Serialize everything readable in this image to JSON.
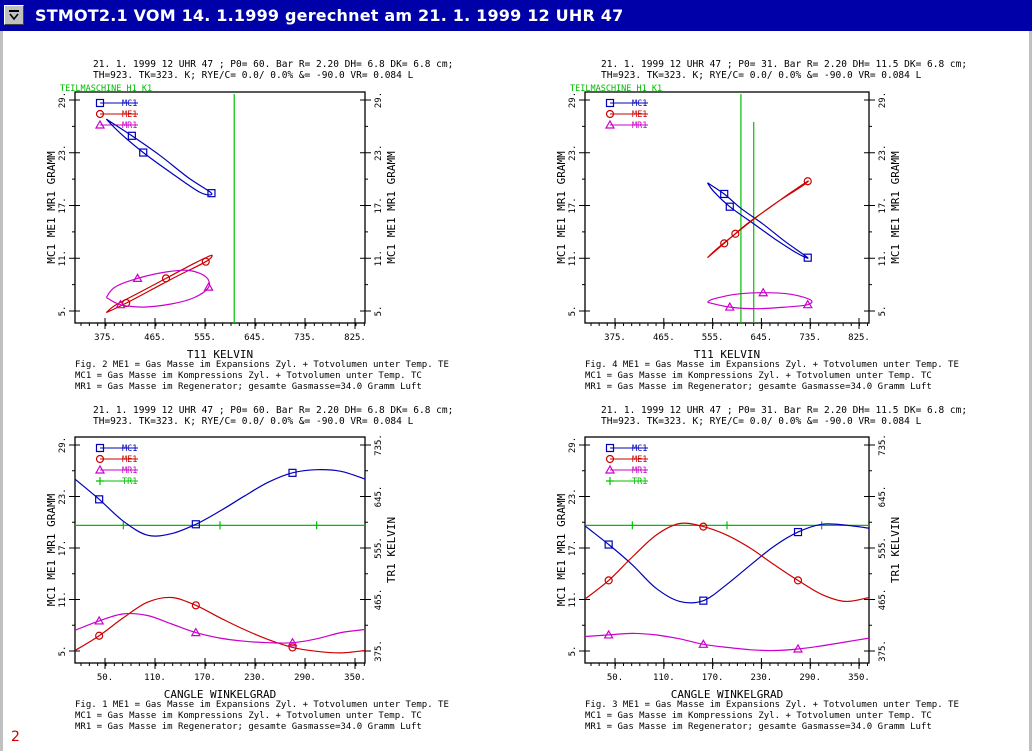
{
  "window": {
    "title": "STMOT2.1 VOM 14. 1.1999 gerechnet am 21. 1. 1999 12 UHR 47",
    "page_number": "2",
    "sysmenu_icon": "system-menu-icon"
  },
  "colors": {
    "MC1": "#0000bb",
    "ME1": "#cc0000",
    "MR1": "#cc00cc",
    "TR1": "#00c000",
    "label": "#00bb00",
    "title_bar": "#0000a8"
  },
  "charts": [
    {
      "id": "fig2",
      "header_lines": [
        "21. 1. 1999 12 UHR 47 ; P0= 60. Bar R= 2.20 DH=  6.8 DK=  6.8 cm;",
        "TH=923. TK=323. K; RYE/C= 0.0/ 0.0% &= -90.0 VR= 0.084 L"
      ],
      "machine_label": "TEILMASCHINE H1  K1",
      "legend": [
        "MC1",
        "ME1",
        "MR1"
      ],
      "ylabel_left": "MC1  ME1  MR1  GRAMM",
      "ylabel_right": "MC1  ME1  MR1  GRAMM",
      "yticks_left": [
        "29.",
        "23.",
        "17.",
        "11.",
        "5."
      ],
      "yticks_right": [
        "29.",
        "23.",
        "17.",
        "11.",
        "5."
      ],
      "xticks": [
        "375.",
        "465.",
        "555.",
        "645.",
        "735.",
        "825."
      ],
      "xlabel": "T11     KELVIN",
      "caption_lines": [
        "Fig. 2 ME1 = Gas Masse im Expansions Zyl. + Totvolumen unter Temp. TE",
        "       MC1 = Gas Masse im Kompressions Zyl. + Totvolumen unter Temp. TC",
        "       MR1 = Gas Masse im Regenerator; gesamte Gasmasse=34.0 Gramm Luft"
      ]
    },
    {
      "id": "fig4",
      "header_lines": [
        "21. 1. 1999 12 UHR 47 ; P0= 31. Bar R= 2.20 DH= 11.5 DK=  6.8 cm;",
        "TH=923. TK=323. K; RYE/C= 0.0/ 0.0% &= -90.0 VR= 0.084 L"
      ],
      "machine_label": "TEILMASCHINE H1  K1",
      "legend": [
        "MC1",
        "ME1",
        "MR1"
      ],
      "ylabel_left": "MC1  ME1  MR1  GRAMM",
      "ylabel_right": "MC1  ME1  MR1  GRAMM",
      "yticks_left": [
        "29.",
        "23.",
        "17.",
        "11.",
        "5."
      ],
      "yticks_right": [
        "29.",
        "23.",
        "17.",
        "11.",
        "5."
      ],
      "xticks": [
        "375.",
        "465.",
        "555.",
        "645.",
        "735.",
        "825."
      ],
      "xlabel": "T11     KELVIN",
      "caption_lines": [
        "Fig. 4 ME1 = Gas Masse im Expansions Zyl. + Totvolumen unter Temp. TE",
        "       MC1 = Gas Masse im Kompressions Zyl. + Totvolumen unter Temp. TC",
        "       MR1 = Gas Masse im Regenerator; gesamte Gasmasse=34.0 Gramm Luft"
      ]
    },
    {
      "id": "fig1",
      "header_lines": [
        "21. 1. 1999 12 UHR 47 ; P0= 60. Bar R= 2.20 DH=  6.8 DK=  6.8 cm;",
        "TH=923. TK=323. K; RYE/C= 0.0/ 0.0% &= -90.0 VR= 0.084 L"
      ],
      "machine_label": "",
      "legend": [
        "MC1",
        "ME1",
        "MR1",
        "TR1"
      ],
      "ylabel_left": "MC1  ME1  MR1  GRAMM",
      "ylabel_right": "TR1  KELVIN",
      "yticks_left": [
        "29.",
        "23.",
        "17.",
        "11.",
        "5."
      ],
      "yticks_right": [
        "735.",
        "645.",
        "555.",
        "465.",
        "375."
      ],
      "xticks": [
        "50.",
        "110.",
        "170.",
        "230.",
        "290.",
        "350."
      ],
      "xlabel": "CANGLE WINKELGRAD",
      "caption_lines": [
        "Fig. 1 ME1 = Gas Masse im Expansions Zyl. + Totvolumen unter Temp. TE",
        "       MC1 = Gas Masse im Kompressions Zyl. + Totvolumen unter Temp. TC",
        "       MR1 = Gas Masse im Regenerator; gesamte Gasmasse=34.0 Gramm Luft"
      ]
    },
    {
      "id": "fig3",
      "header_lines": [
        "21. 1. 1999 12 UHR 47 ; P0= 31. Bar R= 2.20 DH= 11.5 DK=  6.8 cm;",
        "TH=923. TK=323. K; RYE/C= 0.0/ 0.0% &= -90.0 VR= 0.084 L"
      ],
      "machine_label": "",
      "legend": [
        "MC1",
        "ME1",
        "MR1",
        "TR1"
      ],
      "ylabel_left": "MC1  ME1  MR1  GRAMM",
      "ylabel_right": "TR1  KELVIN",
      "yticks_left": [
        "29.",
        "23.",
        "17.",
        "11.",
        "5."
      ],
      "yticks_right": [
        "735.",
        "645.",
        "555.",
        "465.",
        "375."
      ],
      "xticks": [
        "50.",
        "110.",
        "170.",
        "230.",
        "290.",
        "350."
      ],
      "xlabel": "CANGLE WINKELGRAD",
      "caption_lines": [
        "Fig. 3 ME1 = Gas Masse im Expansions Zyl. + Totvolumen unter Temp. TE",
        "       MC1 = Gas Masse im Kompressions Zyl. + Totvolumen unter Temp. TC",
        "       MR1 = Gas Masse im Regenerator; gesamte Gasmasse=34.0 Gramm Luft"
      ]
    }
  ],
  "chart_data": [
    {
      "type": "line",
      "figure": "Fig. 2",
      "xlabel": "T11 KELVIN",
      "ylabel": "MC1 ME1 MR1 GRAMM",
      "xlim": [
        320,
        830
      ],
      "ylim": [
        2,
        31
      ],
      "series": [
        {
          "name": "MC1",
          "x": [
            375,
            420,
            470,
            520,
            560,
            540,
            490,
            440,
            400,
            375
          ],
          "y": [
            27.6,
            25.5,
            23,
            20.2,
            18.3,
            18.4,
            20.8,
            23.4,
            25.8,
            27.6
          ]
        },
        {
          "name": "ME1",
          "x": [
            375,
            410,
            450,
            500,
            550,
            560,
            530,
            480,
            430,
            390,
            375
          ],
          "y": [
            3.3,
            4.5,
            6,
            7.9,
            9.7,
            10.5,
            9.5,
            7.6,
            5.7,
            4.2,
            3.3
          ]
        },
        {
          "name": "MR1",
          "x": [
            375,
            400,
            440,
            490,
            530,
            555,
            550,
            520,
            480,
            430,
            390,
            375
          ],
          "y": [
            5.2,
            4.3,
            4,
            4.4,
            5.2,
            6.5,
            7.8,
            8.6,
            8.4,
            7.6,
            6.5,
            5.2
          ]
        }
      ],
      "vertical_marks": [
        {
          "series": "TR1",
          "x": 600
        }
      ]
    },
    {
      "type": "line",
      "figure": "Fig. 4",
      "xlabel": "T11 KELVIN",
      "ylabel": "MC1 ME1 MR1 GRAMM",
      "xlim": [
        320,
        830
      ],
      "ylim": [
        2,
        31
      ],
      "series": [
        {
          "name": "MC1",
          "x": [
            540,
            570,
            600,
            640,
            680,
            720,
            700,
            660,
            620,
            580,
            550,
            540
          ],
          "y": [
            19.6,
            18.2,
            16.4,
            14.4,
            12.2,
            10.2,
            10.8,
            12.6,
            14.6,
            16.6,
            18.6,
            19.6
          ]
        },
        {
          "name": "ME1",
          "x": [
            540,
            570,
            610,
            650,
            690,
            720,
            710,
            670,
            630,
            590,
            555,
            540
          ],
          "y": [
            10.2,
            12,
            14.4,
            16.4,
            18.4,
            19.8,
            19.2,
            17.4,
            15.4,
            13.2,
            11.2,
            10.2
          ]
        },
        {
          "name": "MR1",
          "x": [
            540,
            580,
            630,
            680,
            720,
            725,
            690,
            640,
            590,
            550,
            540
          ],
          "y": [
            4.6,
            4,
            3.8,
            4,
            4.3,
            4.9,
            5.6,
            5.8,
            5.6,
            5,
            4.6
          ]
        }
      ],
      "vertical_marks": [
        {
          "series": "TR1",
          "x": 600
        },
        {
          "series": "TR1",
          "x": 623
        }
      ]
    },
    {
      "type": "line",
      "figure": "Fig. 1",
      "xlabel": "CANGLE WINKELGRAD",
      "ylabel": "MC1 ME1 MR1 GRAMM",
      "ylabel_right": "TR1 KELVIN",
      "xlim": [
        0,
        360
      ],
      "ylim": [
        2,
        31
      ],
      "ylim_right": [
        320,
        780
      ],
      "x": [
        0,
        30,
        60,
        90,
        120,
        150,
        180,
        210,
        240,
        270,
        300,
        330,
        360
      ],
      "series": [
        {
          "name": "MC1",
          "y": [
            25.6,
            23,
            20.2,
            18.4,
            18.6,
            19.8,
            21.5,
            23.4,
            25.2,
            26.4,
            26.8,
            26.6,
            25.6
          ]
        },
        {
          "name": "ME1",
          "y": [
            3.6,
            5.5,
            7.8,
            9.8,
            10.4,
            9.4,
            7.8,
            6.3,
            5,
            4,
            3.5,
            3.3,
            3.6
          ]
        },
        {
          "name": "MR1",
          "y": [
            6.2,
            7.4,
            8.3,
            8.1,
            7.0,
            5.9,
            5.2,
            4.8,
            4.6,
            4.6,
            5.1,
            5.9,
            6.3
          ]
        }
      ],
      "right_series": [
        {
          "name": "TR1",
          "x": [
            0,
            60,
            120,
            180,
            240,
            300,
            360
          ],
          "y": [
            600,
            600,
            600,
            600,
            600,
            600,
            600
          ]
        }
      ]
    },
    {
      "type": "line",
      "figure": "Fig. 3",
      "xlabel": "CANGLE WINKELGRAD",
      "ylabel": "MC1 ME1 MR1 GRAMM",
      "ylabel_right": "TR1 KELVIN",
      "xlim": [
        0,
        360
      ],
      "ylim": [
        2,
        31
      ],
      "ylim_right": [
        320,
        780
      ],
      "x": [
        0,
        30,
        60,
        90,
        120,
        150,
        180,
        210,
        240,
        270,
        300,
        330,
        360
      ],
      "series": [
        {
          "name": "MC1",
          "y": [
            19.6,
            17.2,
            14.6,
            11.6,
            9.9,
            10,
            12.1,
            14.6,
            17,
            18.8,
            19.8,
            19.7,
            19.3
          ]
        },
        {
          "name": "ME1",
          "y": [
            10.2,
            12.6,
            15.6,
            18.4,
            19.9,
            19.5,
            18.4,
            16.7,
            14.6,
            12.6,
            10.8,
            9.9,
            10.4
          ]
        },
        {
          "name": "MR1",
          "y": [
            5.4,
            5.6,
            5.8,
            5.6,
            5.1,
            4.4,
            4.0,
            3.7,
            3.6,
            3.8,
            4.2,
            4.7,
            5.2
          ]
        }
      ],
      "right_series": [
        {
          "name": "TR1",
          "x": [
            0,
            60,
            120,
            180,
            240,
            300,
            360
          ],
          "y": [
            600,
            600,
            600,
            600,
            600,
            600,
            600
          ]
        }
      ]
    }
  ]
}
